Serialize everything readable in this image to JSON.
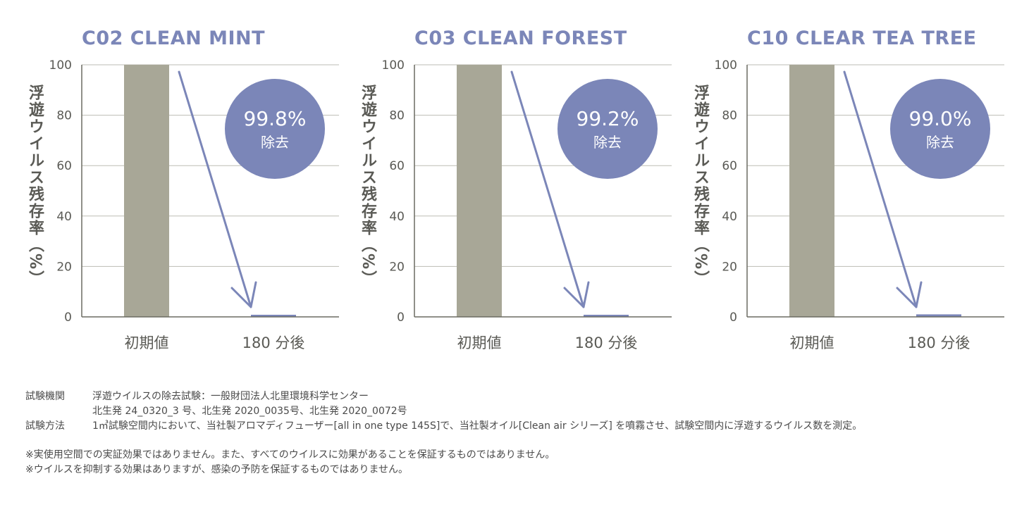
{
  "chart_data": [
    {
      "type": "bar",
      "title": "C02 CLEAN MINT",
      "ylabel": "浮遊ウイルス残存率（%）",
      "categories": [
        "初期値",
        "180 分後"
      ],
      "values": [
        100,
        0.2
      ],
      "ylim": [
        0,
        100
      ],
      "yticks": [
        "0",
        "20",
        "40",
        "60",
        "80",
        "100"
      ],
      "annotation": {
        "percent": "99.8%",
        "label": "除去"
      }
    },
    {
      "type": "bar",
      "title": "C03 CLEAN FOREST",
      "ylabel": "浮遊ウイルス残存率（%）",
      "categories": [
        "初期値",
        "180 分後"
      ],
      "values": [
        100,
        0.8
      ],
      "ylim": [
        0,
        100
      ],
      "yticks": [
        "0",
        "20",
        "40",
        "60",
        "80",
        "100"
      ],
      "annotation": {
        "percent": "99.2%",
        "label": "除去"
      }
    },
    {
      "type": "bar",
      "title": "C10 CLEAR TEA TREE",
      "ylabel": "浮遊ウイルス残存率（%）",
      "categories": [
        "初期値",
        "180 分後"
      ],
      "values": [
        100,
        1.0
      ],
      "ylim": [
        0,
        100
      ],
      "yticks": [
        "0",
        "20",
        "40",
        "60",
        "80",
        "100"
      ],
      "annotation": {
        "percent": "99.0%",
        "label": "除去"
      }
    }
  ],
  "colors": {
    "initial_bar": "#a8a797",
    "after_bar": "#7b86b8",
    "accent": "#7b86b8",
    "title": "#7b86b8",
    "grid": "#bdbdb4",
    "axis": "#6b6b62"
  },
  "notes": {
    "institution_label": "試験機関",
    "institution_line1": "浮遊ウイルスの除去試験：一般財団法人北里環境科学センター",
    "institution_line2": "北生発 24_0320_3 号、北生発 2020_0035号、北生発 2020_0072号",
    "method_label": "試験方法",
    "method_text": "1㎥試験空間内において、当社製アロマディフューザー[all in one type 145S]で、当社製オイル[Clean air シリーズ] を噴霧させ、試験空間内に浮遊するウイルス数を測定。",
    "disclaimer1": "※実使用空間での実証効果ではありません。また、すべてのウイルスに効果があることを保証するものではありません。",
    "disclaimer2": "※ウイルスを抑制する効果はありますが、感染の予防を保証するものではありません。"
  }
}
